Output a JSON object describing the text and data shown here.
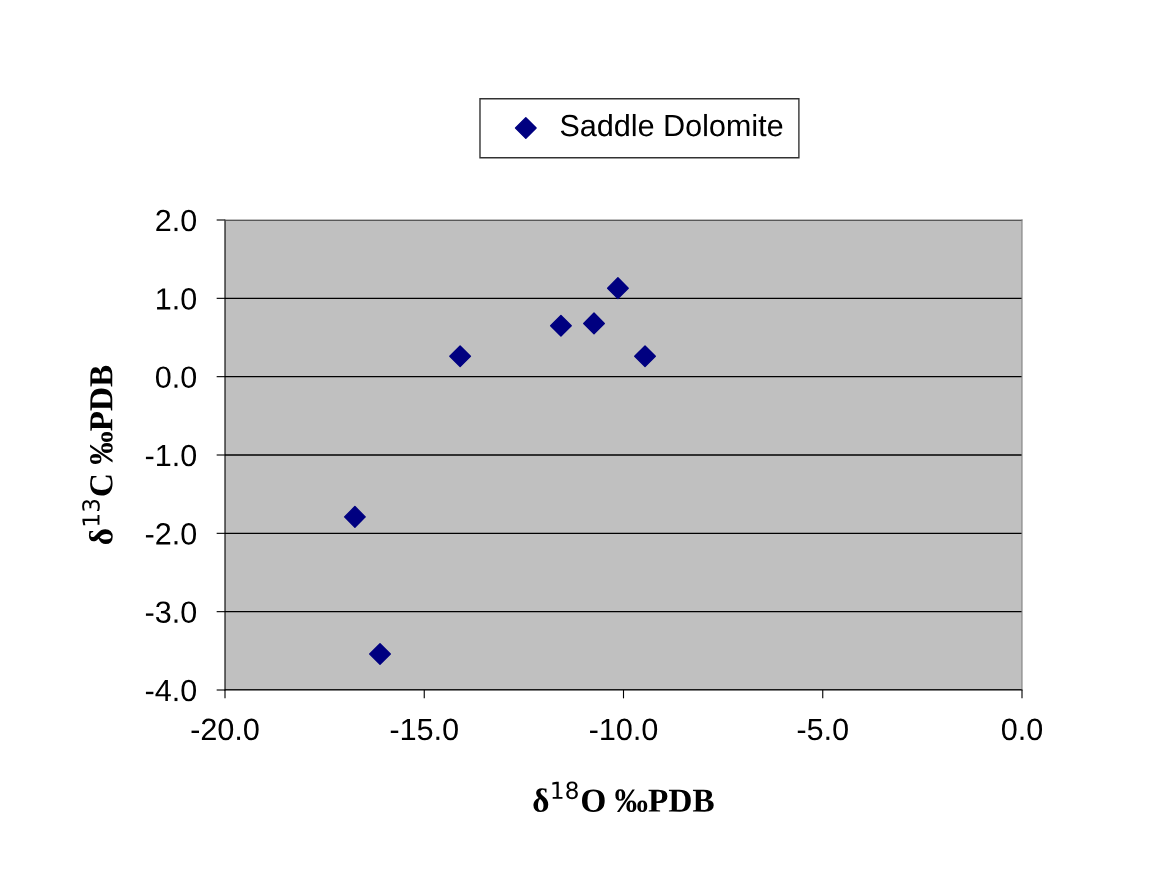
{
  "chart_data": {
    "type": "scatter",
    "xlabel": "δ$^{18}$O ‰PDB",
    "ylabel": "δ$^{13}$C ‰PDB",
    "x": [
      -16.74,
      -16.11,
      -14.1,
      -11.57,
      -10.74,
      -10.14,
      -9.46
    ],
    "series": [
      {
        "name": "Saddle Dolomite",
        "color": "#000080",
        "values": [
          -1.79,
          -3.54,
          0.26,
          0.65,
          0.68,
          1.13,
          0.26
        ]
      }
    ],
    "xlim": [
      -20,
      0
    ],
    "xticks": [
      {
        "value": -20,
        "label": "-20.0"
      },
      {
        "value": -15,
        "label": "-15.0"
      },
      {
        "value": -10,
        "label": "-10.0"
      },
      {
        "value": -5,
        "label": "-5.0"
      },
      {
        "value": 0,
        "label": "0.0"
      }
    ],
    "ylim": [
      -4,
      2
    ],
    "yticks": [
      {
        "value": -4,
        "label": "-4.0"
      },
      {
        "value": -3,
        "label": "-3.0"
      },
      {
        "value": -2,
        "label": "-2.0"
      },
      {
        "value": -1,
        "label": "-1.0"
      },
      {
        "value": 0,
        "label": "0.0"
      },
      {
        "value": 1,
        "label": "1.0"
      },
      {
        "value": 2,
        "label": "2.0"
      }
    ],
    "grid": "y",
    "legend": "top",
    "marker": "diamond"
  }
}
